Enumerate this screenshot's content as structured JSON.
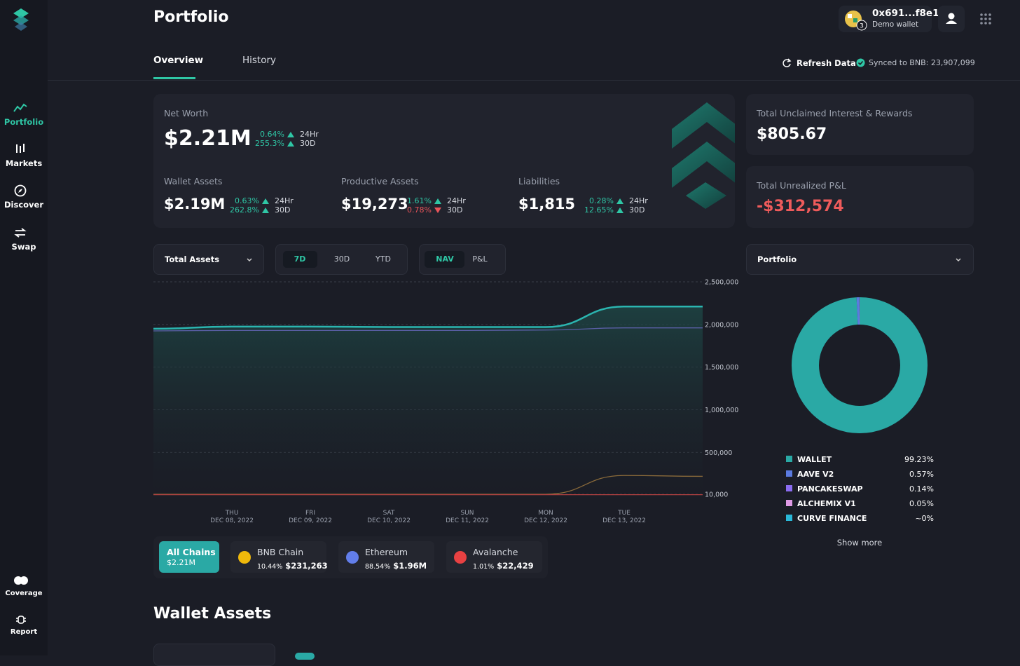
{
  "sidebar": {
    "nav": [
      "Portfolio",
      "Markets",
      "Discover",
      "Swap"
    ],
    "bottom": [
      "Coverage",
      "Report"
    ]
  },
  "header": {
    "title": "Portfolio",
    "wallet_address": "0x691...f8e1",
    "wallet_label": "Demo wallet",
    "wallet_badge": "3"
  },
  "tabs": [
    "Overview",
    "History"
  ],
  "refresh": "Refresh Data",
  "synced": "Synced to BNB: 23,907,099",
  "net_worth": {
    "label": "Net Worth",
    "value": "$2.21M",
    "changes": [
      {
        "pct": "0.64%",
        "period": "24Hr",
        "dir": "up"
      },
      {
        "pct": "255.3%",
        "period": "30D",
        "dir": "up"
      }
    ]
  },
  "metrics": [
    {
      "label": "Wallet Assets",
      "value": "$2.19M",
      "changes": [
        {
          "pct": "0.63%",
          "period": "24Hr",
          "dir": "up"
        },
        {
          "pct": "262.8%",
          "period": "30D",
          "dir": "up"
        }
      ]
    },
    {
      "label": "Productive Assets",
      "value": "$19,273",
      "changes": [
        {
          "pct": "1.61%",
          "period": "24Hr",
          "dir": "up"
        },
        {
          "pct": "0.78%",
          "period": "30D",
          "dir": "down"
        }
      ]
    },
    {
      "label": "Liabilities",
      "value": "$1,815",
      "changes": [
        {
          "pct": "0.28%",
          "period": "24Hr",
          "dir": "up"
        },
        {
          "pct": "12.65%",
          "period": "30D",
          "dir": "up"
        }
      ]
    }
  ],
  "rewards": {
    "label": "Total Unclaimed Interest & Rewards",
    "value": "$805.67"
  },
  "pnl": {
    "label": "Total Unrealized P&L",
    "value": "-$312,574"
  },
  "controls": {
    "asset_select": "Total Assets",
    "ranges": [
      "7D",
      "30D",
      "YTD"
    ],
    "modes": [
      "NAV",
      "P&L"
    ],
    "portfolio_select": "Portfolio"
  },
  "line_chart": {
    "type": "line",
    "categories": [
      null,
      "THU",
      "FRI",
      "SAT",
      "SUN",
      "MON",
      "TUE",
      null
    ],
    "dates": [
      null,
      "DEC 08,  2022",
      "DEC 09,  2022",
      "DEC 10,  2022",
      "DEC 11,  2022",
      "DEC 12,  2022",
      "DEC 13,  2022",
      null
    ],
    "ylim": [
      0,
      2500000
    ],
    "yticks": [
      {
        "value": 10000,
        "label": "10,000"
      },
      {
        "value": 500000,
        "label": "500,000"
      },
      {
        "value": 1000000,
        "label": "1,000,000"
      },
      {
        "value": 1500000,
        "label": "1,500,000"
      },
      {
        "value": 2000000,
        "label": "2,000,000"
      },
      {
        "value": 2500000,
        "label": "2,500,000"
      }
    ],
    "grid": true,
    "series": [
      {
        "color": "#2bb5b0",
        "area": true,
        "values": [
          1950000,
          1975000,
          1975000,
          1970000,
          1970000,
          1970000,
          2210000,
          2210000
        ]
      },
      {
        "color": "#5a5fa6",
        "values": [
          1925000,
          1930000,
          1930000,
          1930000,
          1930000,
          1935000,
          1960000,
          1960000
        ]
      },
      {
        "color": "#8a6a3a",
        "values": [
          10000,
          10000,
          10000,
          10000,
          10000,
          10000,
          230000,
          220000
        ]
      },
      {
        "color": "#b04040",
        "values": [
          5000,
          5000,
          5000,
          5000,
          5000,
          5000,
          5000,
          5000
        ]
      }
    ]
  },
  "chains": [
    {
      "name": "All Chains",
      "value": "$2.21M"
    },
    {
      "name": "BNB Chain",
      "pct": "10.44%",
      "value": "$231,263",
      "color": "#f0b90b"
    },
    {
      "name": "Ethereum",
      "pct": "88.54%",
      "value": "$1.96M",
      "color": "#627eea"
    },
    {
      "name": "Avalanche",
      "pct": "1.01%",
      "value": "$22,429",
      "color": "#e84142"
    }
  ],
  "donut": {
    "type": "pie",
    "categories": [
      "WALLET",
      "AAVE V2",
      "PANCAKESWAP",
      "ALCHEMIX V1",
      "CURVE FINANCE"
    ],
    "values": [
      99.23,
      0.57,
      0.14,
      0.05,
      0
    ],
    "value_labels": [
      "99.23%",
      "0.57%",
      "0.14%",
      "0.05%",
      "~0%"
    ],
    "colors": [
      "#2aa9a5",
      "#5b7be0",
      "#8b6cf0",
      "#e09be6",
      "#2ab8d8"
    ]
  },
  "show_more": "Show more",
  "section_title": "Wallet Assets"
}
